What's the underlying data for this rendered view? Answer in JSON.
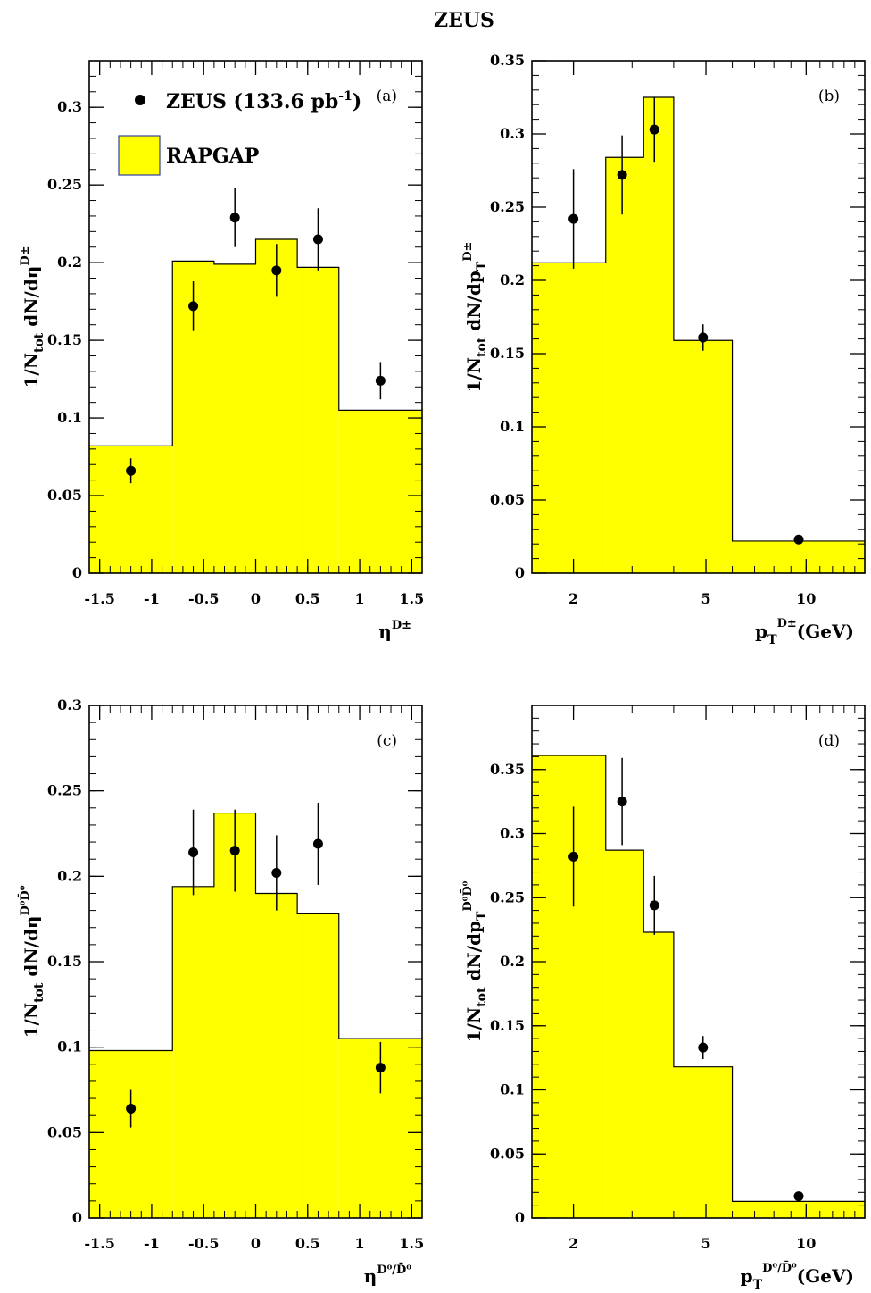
{
  "title": "ZEUS",
  "colors": {
    "mc_fill": "#ffff00",
    "frame": "#000000",
    "legend_border": "#3040a0"
  },
  "legend": {
    "data_label": "ZEUS (133.6 pb",
    "data_label_sup": "-1",
    "data_label_end": ")",
    "mc_label": "RAPGAP"
  },
  "chart_data": [
    {
      "type": "histogram",
      "panel": "a",
      "panel_label": "(a)",
      "xlabel": "η",
      "xlabel_sup": "D±",
      "ylabel": "1/N",
      "ylabel_sub": "tot",
      "ylabel_rest": " dN/dη",
      "ylabel_sup": "D±",
      "xscale": "linear",
      "xlim": [
        -1.6,
        1.6
      ],
      "ylim": [
        0,
        0.33
      ],
      "xticks": [
        -1.5,
        -1,
        -0.5,
        0,
        0.5,
        1,
        1.5
      ],
      "xtick_labels": [
        "-1.5",
        "-1",
        "-0.5",
        "0",
        "0.5",
        "1",
        "1.5"
      ],
      "yticks": [
        0,
        0.05,
        0.1,
        0.15,
        0.2,
        0.25,
        0.3
      ],
      "ytick_labels": [
        "0",
        "0.05",
        "0.1",
        "0.15",
        "0.2",
        "0.25",
        "0.3"
      ],
      "mc_edges": [
        -1.6,
        -0.8,
        -0.4,
        0.0,
        0.4,
        0.8,
        1.6
      ],
      "mc_values": [
        0.082,
        0.201,
        0.199,
        0.215,
        0.197,
        0.105
      ],
      "data_x": [
        -1.2,
        -0.6,
        -0.2,
        0.2,
        0.6,
        1.2
      ],
      "data_y": [
        0.066,
        0.172,
        0.229,
        0.195,
        0.215,
        0.124
      ],
      "data_err": [
        0.008,
        0.016,
        0.019,
        0.017,
        0.02,
        0.012
      ]
    },
    {
      "type": "histogram",
      "panel": "b",
      "panel_label": "(b)",
      "xlabel": "p",
      "xlabel_sub": "T",
      "xlabel_sup": "D±",
      "xlabel_rest": "(GeV)",
      "ylabel": "1/N",
      "ylabel_sub": "tot",
      "ylabel_rest": " dN/dp",
      "ylabel_sub2": "T",
      "ylabel_sup": "D±",
      "xscale": "log",
      "xlim": [
        1.5,
        15.0
      ],
      "ylim": [
        0,
        0.35
      ],
      "xticks": [
        2,
        5,
        10
      ],
      "xtick_labels": [
        "2",
        "5",
        "10"
      ],
      "yticks": [
        0,
        0.05,
        0.1,
        0.15,
        0.2,
        0.25,
        0.3,
        0.35
      ],
      "ytick_labels": [
        "0",
        "0.05",
        "0.1",
        "0.15",
        "0.2",
        "0.25",
        "0.3",
        "0.35"
      ],
      "mc_edges": [
        1.5,
        2.5,
        3.25,
        4.0,
        6.0,
        15.0
      ],
      "mc_values": [
        0.212,
        0.284,
        0.325,
        0.159,
        0.022
      ],
      "data_x": [
        2.0,
        2.8,
        3.5,
        4.9,
        9.5
      ],
      "data_y": [
        0.242,
        0.272,
        0.303,
        0.161,
        0.023
      ],
      "data_err": [
        0.034,
        0.027,
        0.022,
        0.009,
        0.002
      ]
    },
    {
      "type": "histogram",
      "panel": "c",
      "panel_label": "(c)",
      "xlabel": "η",
      "xlabel_sup": "D⁰/D̄⁰",
      "ylabel": "1/N",
      "ylabel_sub": "tot",
      "ylabel_rest": " dN/dη",
      "ylabel_sup": "D⁰D̄⁰",
      "xscale": "linear",
      "xlim": [
        -1.6,
        1.6
      ],
      "ylim": [
        0,
        0.3
      ],
      "xticks": [
        -1.5,
        -1,
        -0.5,
        0,
        0.5,
        1,
        1.5
      ],
      "xtick_labels": [
        "-1.5",
        "-1",
        "-0.5",
        "0",
        "0.5",
        "1",
        "1.5"
      ],
      "yticks": [
        0,
        0.05,
        0.1,
        0.15,
        0.2,
        0.25,
        0.3
      ],
      "ytick_labels": [
        "0",
        "0.05",
        "0.1",
        "0.15",
        "0.2",
        "0.25",
        "0.3"
      ],
      "mc_edges": [
        -1.6,
        -0.8,
        -0.4,
        0.0,
        0.4,
        0.8,
        1.6
      ],
      "mc_values": [
        0.098,
        0.194,
        0.237,
        0.19,
        0.178,
        0.105
      ],
      "data_x": [
        -1.2,
        -0.6,
        -0.2,
        0.2,
        0.6,
        1.2
      ],
      "data_y": [
        0.064,
        0.214,
        0.215,
        0.202,
        0.219,
        0.088
      ],
      "data_err": [
        0.011,
        0.025,
        0.024,
        0.022,
        0.024,
        0.015
      ]
    },
    {
      "type": "histogram",
      "panel": "d",
      "panel_label": "(d)",
      "xlabel": "p",
      "xlabel_sub": "T",
      "xlabel_sup": "D⁰/D̄⁰",
      "xlabel_rest": "(GeV)",
      "ylabel": "1/N",
      "ylabel_sub": "tot",
      "ylabel_rest": " dN/dp",
      "ylabel_sub2": "T",
      "ylabel_sup": "D⁰D̄⁰",
      "xscale": "log",
      "xlim": [
        1.5,
        15.0
      ],
      "ylim": [
        0,
        0.4
      ],
      "xticks": [
        2,
        5,
        10
      ],
      "xtick_labels": [
        "2",
        "5",
        "10"
      ],
      "yticks": [
        0,
        0.05,
        0.1,
        0.15,
        0.2,
        0.25,
        0.3,
        0.35
      ],
      "ytick_labels": [
        "0",
        "0.05",
        "0.1",
        "0.15",
        "0.2",
        "0.25",
        "0.3",
        "0.35"
      ],
      "mc_edges": [
        1.5,
        2.5,
        3.25,
        4.0,
        6.0,
        15.0
      ],
      "mc_values": [
        0.361,
        0.287,
        0.223,
        0.118,
        0.013
      ],
      "data_x": [
        2.0,
        2.8,
        3.5,
        4.9,
        9.5
      ],
      "data_y": [
        0.282,
        0.325,
        0.244,
        0.133,
        0.017
      ],
      "data_err": [
        0.039,
        0.034,
        0.023,
        0.009,
        0.002
      ]
    }
  ]
}
